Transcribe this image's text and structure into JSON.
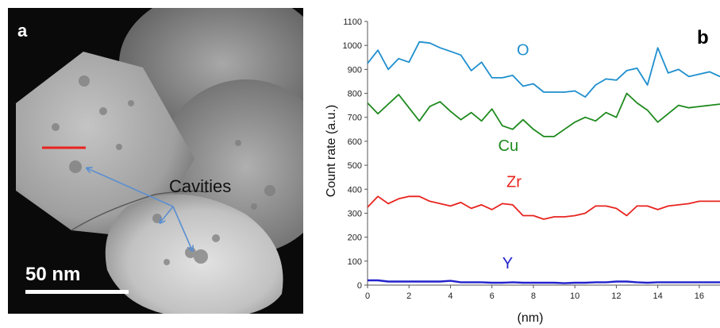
{
  "panel_a": {
    "label": "a",
    "annotation": "Cavities",
    "scale_bar": "50 nm",
    "colors": {
      "line_scan_marker": "#e8231e",
      "arrows": "#5b8fd0"
    }
  },
  "panel_b": {
    "label": "b"
  },
  "chart_data": {
    "type": "line",
    "xlabel": "(nm)",
    "ylabel": "Count rate (a.u.)",
    "xlim": [
      0,
      17
    ],
    "ylim": [
      0,
      1100
    ],
    "x_ticks": [
      0,
      2,
      4,
      6,
      8,
      10,
      12,
      14,
      16
    ],
    "y_ticks": [
      0,
      100,
      200,
      300,
      400,
      500,
      600,
      700,
      800,
      900,
      1000,
      1100
    ],
    "grid": false,
    "series": [
      {
        "name": "O",
        "color": "#1f8fce",
        "x": [
          0,
          0.5,
          1,
          1.5,
          2,
          2.5,
          3,
          3.5,
          4,
          4.5,
          5,
          5.5,
          6,
          6.5,
          7,
          7.5,
          8,
          8.5,
          9,
          9.5,
          10,
          10.5,
          11,
          11.5,
          12,
          12.5,
          13,
          13.5,
          14,
          14.5,
          15,
          15.5,
          16,
          16.5,
          17
        ],
        "values": [
          925,
          980,
          900,
          945,
          930,
          1015,
          1010,
          990,
          975,
          960,
          895,
          930,
          865,
          865,
          875,
          830,
          840,
          805,
          805,
          805,
          810,
          785,
          835,
          860,
          855,
          895,
          905,
          835,
          990,
          885,
          900,
          870,
          880,
          890,
          870
        ]
      },
      {
        "name": "Cu",
        "color": "#1e8a1e",
        "x": [
          0,
          0.5,
          1,
          1.5,
          2,
          2.5,
          3,
          3.5,
          4,
          4.5,
          5,
          5.5,
          6,
          6.5,
          7,
          7.5,
          8,
          8.5,
          9,
          9.5,
          10,
          10.5,
          11,
          11.5,
          12,
          12.5,
          13,
          13.5,
          14,
          14.5,
          15,
          15.5,
          16,
          16.5,
          17
        ],
        "values": [
          760,
          715,
          755,
          795,
          740,
          685,
          745,
          765,
          725,
          690,
          720,
          685,
          735,
          665,
          650,
          690,
          650,
          620,
          620,
          650,
          680,
          700,
          685,
          720,
          700,
          800,
          760,
          730,
          680,
          715,
          750,
          740,
          745,
          750,
          755
        ]
      },
      {
        "name": "Zr",
        "color": "#e8231e",
        "x": [
          0,
          0.5,
          1,
          1.5,
          2,
          2.5,
          3,
          3.5,
          4,
          4.5,
          5,
          5.5,
          6,
          6.5,
          7,
          7.5,
          8,
          8.5,
          9,
          9.5,
          10,
          10.5,
          11,
          11.5,
          12,
          12.5,
          13,
          13.5,
          14,
          14.5,
          15,
          15.5,
          16,
          16.5,
          17
        ],
        "values": [
          325,
          370,
          340,
          360,
          370,
          370,
          350,
          340,
          330,
          345,
          320,
          335,
          315,
          340,
          335,
          290,
          290,
          275,
          285,
          285,
          290,
          300,
          330,
          330,
          320,
          290,
          330,
          330,
          315,
          330,
          335,
          340,
          350,
          350,
          350
        ]
      },
      {
        "name": "Y",
        "color": "#2222cc",
        "x": [
          0,
          0.5,
          1,
          1.5,
          2,
          2.5,
          3,
          3.5,
          4,
          4.5,
          5,
          5.5,
          6,
          6.5,
          7,
          7.5,
          8,
          8.5,
          9,
          9.5,
          10,
          10.5,
          11,
          11.5,
          12,
          12.5,
          13,
          13.5,
          14,
          14.5,
          15,
          15.5,
          16,
          16.5,
          17
        ],
        "values": [
          20,
          20,
          15,
          15,
          15,
          15,
          15,
          15,
          18,
          12,
          12,
          12,
          10,
          10,
          12,
          10,
          10,
          10,
          10,
          8,
          10,
          10,
          12,
          12,
          15,
          15,
          12,
          10,
          12,
          12,
          12,
          12,
          12,
          12,
          12
        ]
      }
    ]
  }
}
